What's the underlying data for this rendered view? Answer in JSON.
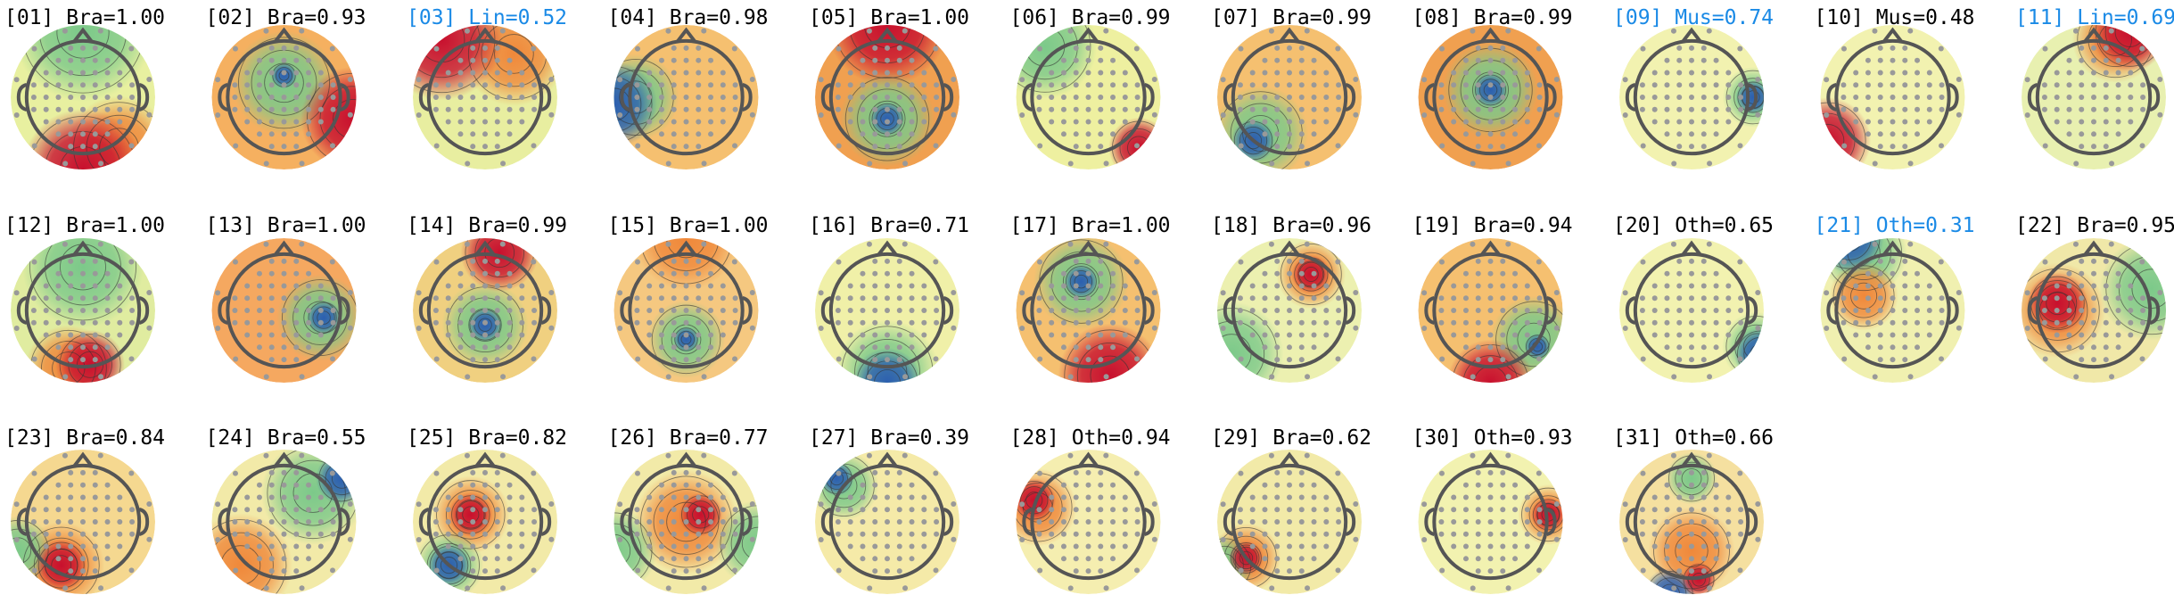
{
  "panels": [
    {
      "label": "[01] Bra=1.00",
      "color": "#000000"
    },
    {
      "label": "[02] Bra=0.93",
      "color": "#000000"
    },
    {
      "label": "[03] Lin=0.52",
      "color": "#1a8ae6"
    },
    {
      "label": "[04] Bra=0.98",
      "color": "#000000"
    },
    {
      "label": "[05] Bra=1.00",
      "color": "#000000"
    },
    {
      "label": "[06] Bra=0.99",
      "color": "#000000"
    },
    {
      "label": "[07] Bra=0.99",
      "color": "#000000"
    },
    {
      "label": "[08] Bra=0.99",
      "color": "#000000"
    },
    {
      "label": "[09] Mus=0.74",
      "color": "#1a8ae6"
    },
    {
      "label": "[10] Mus=0.48",
      "color": "#000000"
    },
    {
      "label": "[11] Lin=0.69",
      "color": "#1a8ae6"
    },
    {
      "label": "[12] Bra=1.00",
      "color": "#000000"
    },
    {
      "label": "[13] Bra=1.00",
      "color": "#000000"
    },
    {
      "label": "[14] Bra=0.99",
      "color": "#000000"
    },
    {
      "label": "[15] Bra=1.00",
      "color": "#000000"
    },
    {
      "label": "[16] Bra=0.71",
      "color": "#000000"
    },
    {
      "label": "[17] Bra=1.00",
      "color": "#000000"
    },
    {
      "label": "[18] Bra=0.96",
      "color": "#000000"
    },
    {
      "label": "[19] Bra=0.94",
      "color": "#000000"
    },
    {
      "label": "[20] Oth=0.65",
      "color": "#000000"
    },
    {
      "label": "[21] Oth=0.31",
      "color": "#1a8ae6"
    },
    {
      "label": "[22] Bra=0.95",
      "color": "#000000"
    },
    {
      "label": "[23] Bra=0.84",
      "color": "#000000"
    },
    {
      "label": "[24] Bra=0.55",
      "color": "#000000"
    },
    {
      "label": "[25] Bra=0.82",
      "color": "#000000"
    },
    {
      "label": "[26] Bra=0.77",
      "color": "#000000"
    },
    {
      "label": "[27] Bra=0.39",
      "color": "#000000"
    },
    {
      "label": "[28] Oth=0.94",
      "color": "#000000"
    },
    {
      "label": "[29] Bra=0.62",
      "color": "#000000"
    },
    {
      "label": "[30] Oth=0.93",
      "color": "#000000"
    },
    {
      "label": "[31] Oth=0.66",
      "color": "#000000"
    }
  ]
}
